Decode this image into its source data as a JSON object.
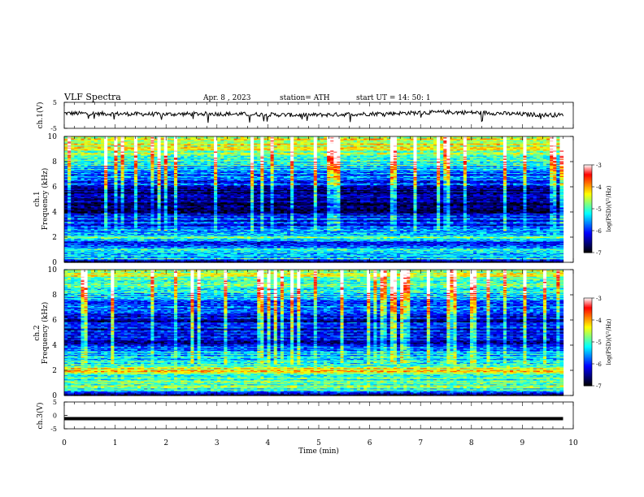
{
  "header": {
    "title": "VLF  Spectra",
    "date": "Apr. 8  , 2023",
    "station": "station= ATH",
    "start_ut": "start  UT  =   14: 50: 1"
  },
  "chart_data": [
    {
      "type": "line",
      "id": "ch1_waveform",
      "ylabel": "ch.1(V)",
      "ylim": [
        -5,
        5
      ],
      "y_ticks": [
        {
          "value": 5,
          "label": "5"
        },
        {
          "value": -5,
          "label": "-5"
        }
      ],
      "xlim": [
        0,
        10
      ],
      "baseline": [
        0.8,
        0.7,
        0.6,
        0.5,
        0.4,
        0.5,
        0.6,
        0.5,
        0.4,
        0.2,
        0.1,
        0.2,
        0.4,
        0.6,
        0.8,
        1.0,
        1.2,
        1.1,
        0.9,
        0.5,
        0.2,
        0.1
      ],
      "color": "#000000"
    },
    {
      "type": "heatmap",
      "id": "ch1_spectrogram",
      "ylabel": "Frequency  (kHz)",
      "channel_label": "ch.1",
      "ylim": [
        0,
        10
      ],
      "y_ticks": [
        "0",
        "2",
        "4",
        "6",
        "8",
        "10"
      ],
      "xlim": [
        0,
        10
      ],
      "colorbar": {
        "label": "log(PSD)(V²/Hz)",
        "range": [
          -7,
          -3
        ],
        "ticks": [
          "-3",
          "-4",
          "-5",
          "-6",
          "-7"
        ],
        "colors": [
          "#000000",
          "#00007f",
          "#0000ff",
          "#0080ff",
          "#00ffff",
          "#80ff80",
          "#ffff00",
          "#ff8000",
          "#ff0000",
          "#ffffff"
        ]
      },
      "level_profile": [
        {
          "f": 0.0,
          "v": 0.05
        },
        {
          "f": 0.3,
          "v": 0.45
        },
        {
          "f": 0.6,
          "v": 0.35
        },
        {
          "f": 1.0,
          "v": 0.42
        },
        {
          "f": 1.5,
          "v": 0.25
        },
        {
          "f": 2.0,
          "v": 0.52
        },
        {
          "f": 2.4,
          "v": 0.33
        },
        {
          "f": 3.0,
          "v": 0.22
        },
        {
          "f": 3.5,
          "v": 0.28
        },
        {
          "f": 4.0,
          "v": 0.1
        },
        {
          "f": 4.5,
          "v": 0.05
        },
        {
          "f": 5.0,
          "v": 0.14
        },
        {
          "f": 5.5,
          "v": 0.08
        },
        {
          "f": 6.0,
          "v": 0.22
        },
        {
          "f": 7.0,
          "v": 0.32
        },
        {
          "f": 8.0,
          "v": 0.5
        },
        {
          "f": 9.0,
          "v": 0.6
        },
        {
          "f": 10.0,
          "v": 0.66
        }
      ]
    },
    {
      "type": "heatmap",
      "id": "ch2_spectrogram",
      "ylabel": "Frequency  (kHz)",
      "channel_label": "ch.2",
      "ylim": [
        0,
        10
      ],
      "y_ticks": [
        "0",
        "2",
        "4",
        "6",
        "8",
        "10"
      ],
      "xlim": [
        0,
        10
      ],
      "colorbar": {
        "label": "log(PSD)(V²/Hz)",
        "range": [
          -7,
          -3
        ],
        "ticks": [
          "-3",
          "-4",
          "-5",
          "-6",
          "-7"
        ],
        "colors": [
          "#000000",
          "#00007f",
          "#0000ff",
          "#0080ff",
          "#00ffff",
          "#80ff80",
          "#ffff00",
          "#ff8000",
          "#ff0000",
          "#ffffff"
        ]
      },
      "level_profile": [
        {
          "f": 0.0,
          "v": 0.1
        },
        {
          "f": 0.5,
          "v": 0.5
        },
        {
          "f": 1.0,
          "v": 0.55
        },
        {
          "f": 1.5,
          "v": 0.45
        },
        {
          "f": 2.0,
          "v": 0.7
        },
        {
          "f": 2.5,
          "v": 0.48
        },
        {
          "f": 3.0,
          "v": 0.42
        },
        {
          "f": 3.5,
          "v": 0.38
        },
        {
          "f": 4.0,
          "v": 0.18
        },
        {
          "f": 4.5,
          "v": 0.22
        },
        {
          "f": 5.0,
          "v": 0.2
        },
        {
          "f": 5.5,
          "v": 0.24
        },
        {
          "f": 6.0,
          "v": 0.15
        },
        {
          "f": 7.0,
          "v": 0.28
        },
        {
          "f": 8.0,
          "v": 0.42
        },
        {
          "f": 9.0,
          "v": 0.55
        },
        {
          "f": 10.0,
          "v": 0.62
        }
      ]
    },
    {
      "type": "line",
      "id": "ch3_waveform",
      "ylabel": "ch.3(V)",
      "ylim": [
        -5,
        5
      ],
      "y_ticks": [
        {
          "value": 5,
          "label": "5"
        },
        {
          "value": 0,
          "label": "0"
        },
        {
          "value": -5,
          "label": "-5"
        }
      ],
      "xlim": [
        0,
        10
      ],
      "constant_value": -1.2,
      "color": "#000000"
    }
  ],
  "x_axis": {
    "label": "Time  (min)",
    "ticks": [
      "0",
      "1",
      "2",
      "3",
      "4",
      "5",
      "6",
      "7",
      "8",
      "9",
      "10"
    ],
    "data_end_min": 9.8
  }
}
